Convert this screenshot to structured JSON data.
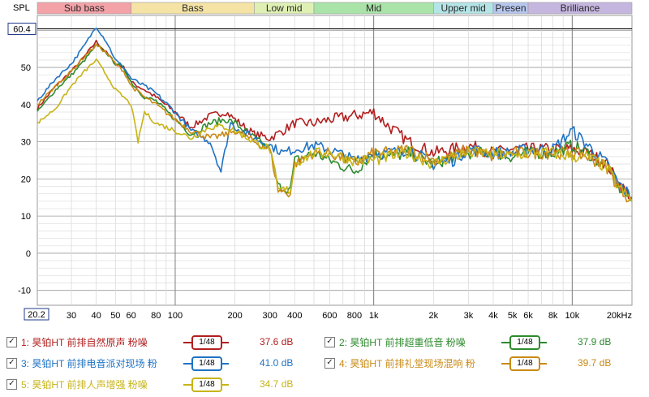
{
  "chart_data": {
    "type": "line",
    "title": "",
    "ylabel": "SPL",
    "xlabel": "",
    "x_scale": "log",
    "xlim": [
      20.2,
      20000
    ],
    "ylim": [
      -14,
      64
    ],
    "cursor_label": "60.4",
    "x_start_label": "20.2",
    "y_ticks": [
      "50",
      "40",
      "30",
      "20",
      "10",
      "0",
      "-10"
    ],
    "y_tick_values": [
      50,
      40,
      30,
      20,
      10,
      0,
      -10
    ],
    "x_ticks": [
      "30",
      "40",
      "50",
      "60",
      "80",
      "100",
      "200",
      "300",
      "400",
      "600",
      "800",
      "1k",
      "2k",
      "3k",
      "4k",
      "5k",
      "6k",
      "8k",
      "10k",
      "20kHz"
    ],
    "x_tick_values": [
      30,
      40,
      50,
      60,
      80,
      100,
      200,
      300,
      400,
      600,
      800,
      1000,
      2000,
      3000,
      4000,
      5000,
      6000,
      8000,
      10000,
      20000
    ],
    "bands": [
      {
        "label": "Sub bass",
        "from": 20.2,
        "to": 60,
        "color": "#f3a2a8"
      },
      {
        "label": "Bass",
        "from": 60,
        "to": 250,
        "color": "#f4e3a4"
      },
      {
        "label": "Low mid",
        "from": 250,
        "to": 500,
        "color": "#dff0b4"
      },
      {
        "label": "Mid",
        "from": 500,
        "to": 2000,
        "color": "#a9e3a8"
      },
      {
        "label": "Upper mid",
        "from": 2000,
        "to": 4000,
        "color": "#b4e4e6"
      },
      {
        "label": "Presen",
        "from": 4000,
        "to": 6000,
        "color": "#b6c7ee"
      },
      {
        "label": "Brilliance",
        "from": 6000,
        "to": 20000,
        "color": "#c5b6e0"
      }
    ],
    "series": [
      {
        "name": "1: 昊铂HT 前排自然原声 粉噪",
        "color": "#b21f1f",
        "smoothing": "1/48",
        "level": "37.6 dB",
        "points": [
          [
            20.2,
            39
          ],
          [
            25,
            45
          ],
          [
            30,
            49
          ],
          [
            35,
            53
          ],
          [
            40,
            57
          ],
          [
            45,
            54
          ],
          [
            50,
            51
          ],
          [
            55,
            50
          ],
          [
            60,
            46
          ],
          [
            70,
            44
          ],
          [
            80,
            42
          ],
          [
            100,
            38
          ],
          [
            120,
            34
          ],
          [
            150,
            37
          ],
          [
            180,
            38
          ],
          [
            200,
            36
          ],
          [
            250,
            32
          ],
          [
            300,
            31
          ],
          [
            350,
            33
          ],
          [
            400,
            35
          ],
          [
            500,
            35
          ],
          [
            600,
            36
          ],
          [
            800,
            37
          ],
          [
            1000,
            38
          ],
          [
            1200,
            34
          ],
          [
            1500,
            30
          ],
          [
            2000,
            27
          ],
          [
            2500,
            28
          ],
          [
            3000,
            29
          ],
          [
            4000,
            27
          ],
          [
            5000,
            28
          ],
          [
            6000,
            28
          ],
          [
            8000,
            28
          ],
          [
            10000,
            28
          ],
          [
            12000,
            27
          ],
          [
            15000,
            24
          ],
          [
            17000,
            19
          ],
          [
            20000,
            15
          ]
        ]
      },
      {
        "name": "2: 昊铂HT 前排超重低音 粉噪",
        "color": "#2e8b2e",
        "smoothing": "1/48",
        "level": "37.9 dB",
        "points": [
          [
            20.2,
            38
          ],
          [
            25,
            44
          ],
          [
            30,
            48
          ],
          [
            35,
            52
          ],
          [
            40,
            56
          ],
          [
            45,
            54
          ],
          [
            50,
            51
          ],
          [
            55,
            50
          ],
          [
            60,
            46
          ],
          [
            70,
            42
          ],
          [
            80,
            41
          ],
          [
            100,
            36
          ],
          [
            120,
            32
          ],
          [
            150,
            35
          ],
          [
            180,
            36
          ],
          [
            200,
            35
          ],
          [
            250,
            31
          ],
          [
            300,
            28
          ],
          [
            330,
            18
          ],
          [
            380,
            17
          ],
          [
            400,
            25
          ],
          [
            500,
            27
          ],
          [
            600,
            25
          ],
          [
            800,
            22
          ],
          [
            1000,
            27
          ],
          [
            1200,
            26
          ],
          [
            1500,
            27
          ],
          [
            2000,
            24
          ],
          [
            2500,
            26
          ],
          [
            3000,
            27
          ],
          [
            4000,
            27
          ],
          [
            5000,
            26
          ],
          [
            6000,
            27
          ],
          [
            8000,
            27
          ],
          [
            10000,
            29
          ],
          [
            12000,
            27
          ],
          [
            15000,
            23
          ],
          [
            17000,
            18
          ],
          [
            20000,
            14
          ]
        ]
      },
      {
        "name": "3: 昊铂HT 前排电音派对现场 粉",
        "color": "#1f73c4",
        "smoothing": "1/48",
        "level": "41.0 dB",
        "points": [
          [
            20.2,
            41
          ],
          [
            25,
            47
          ],
          [
            30,
            51
          ],
          [
            35,
            56
          ],
          [
            40,
            61
          ],
          [
            45,
            57
          ],
          [
            50,
            52
          ],
          [
            55,
            50
          ],
          [
            60,
            47
          ],
          [
            70,
            45
          ],
          [
            80,
            43
          ],
          [
            100,
            38
          ],
          [
            120,
            33
          ],
          [
            150,
            30
          ],
          [
            170,
            22
          ],
          [
            190,
            35
          ],
          [
            200,
            34
          ],
          [
            250,
            31
          ],
          [
            300,
            29
          ],
          [
            350,
            27
          ],
          [
            400,
            28
          ],
          [
            500,
            29
          ],
          [
            600,
            28
          ],
          [
            800,
            25
          ],
          [
            1000,
            27
          ],
          [
            1200,
            27
          ],
          [
            1500,
            28
          ],
          [
            2000,
            24
          ],
          [
            2500,
            25
          ],
          [
            3000,
            28
          ],
          [
            4000,
            27
          ],
          [
            5000,
            27
          ],
          [
            6000,
            28
          ],
          [
            8000,
            28
          ],
          [
            10000,
            33
          ],
          [
            12000,
            29
          ],
          [
            15000,
            24
          ],
          [
            17000,
            19
          ],
          [
            20000,
            15
          ]
        ]
      },
      {
        "name": "4: 昊铂HT 前排礼堂现场混响 粉",
        "color": "#c98a16",
        "smoothing": "1/48",
        "level": "39.7 dB",
        "points": [
          [
            20.2,
            40
          ],
          [
            25,
            45
          ],
          [
            30,
            49
          ],
          [
            35,
            53
          ],
          [
            40,
            56
          ],
          [
            45,
            54
          ],
          [
            50,
            51
          ],
          [
            55,
            49
          ],
          [
            60,
            45
          ],
          [
            70,
            42
          ],
          [
            80,
            40
          ],
          [
            100,
            36
          ],
          [
            120,
            33
          ],
          [
            150,
            31
          ],
          [
            180,
            32
          ],
          [
            200,
            33
          ],
          [
            250,
            30
          ],
          [
            300,
            28
          ],
          [
            330,
            17
          ],
          [
            380,
            16
          ],
          [
            400,
            24
          ],
          [
            500,
            27
          ],
          [
            600,
            27
          ],
          [
            800,
            24
          ],
          [
            1000,
            27
          ],
          [
            1200,
            27
          ],
          [
            1500,
            28
          ],
          [
            2000,
            25
          ],
          [
            2500,
            26
          ],
          [
            3000,
            28
          ],
          [
            4000,
            26
          ],
          [
            5000,
            27
          ],
          [
            6000,
            27
          ],
          [
            8000,
            27
          ],
          [
            10000,
            27
          ],
          [
            12000,
            26
          ],
          [
            15000,
            23
          ],
          [
            17000,
            18
          ],
          [
            20000,
            14
          ]
        ]
      },
      {
        "name": "5: 昊铂HT 前排人声增强 粉噪",
        "color": "#c7b417",
        "smoothing": "1/48",
        "level": "34.7 dB",
        "points": [
          [
            20.2,
            35
          ],
          [
            25,
            39
          ],
          [
            30,
            45
          ],
          [
            35,
            49
          ],
          [
            40,
            52
          ],
          [
            45,
            48
          ],
          [
            50,
            44
          ],
          [
            55,
            42
          ],
          [
            60,
            40
          ],
          [
            65,
            30
          ],
          [
            70,
            38
          ],
          [
            80,
            35
          ],
          [
            100,
            33
          ],
          [
            120,
            31
          ],
          [
            150,
            34
          ],
          [
            180,
            34
          ],
          [
            200,
            33
          ],
          [
            250,
            30
          ],
          [
            300,
            28
          ],
          [
            330,
            17
          ],
          [
            380,
            17
          ],
          [
            400,
            24
          ],
          [
            500,
            27
          ],
          [
            600,
            27
          ],
          [
            800,
            25
          ],
          [
            1000,
            25
          ],
          [
            1200,
            26
          ],
          [
            1500,
            27
          ],
          [
            2000,
            24
          ],
          [
            2500,
            26
          ],
          [
            3000,
            27
          ],
          [
            4000,
            27
          ],
          [
            5000,
            26
          ],
          [
            6000,
            27
          ],
          [
            8000,
            27
          ],
          [
            10000,
            26
          ],
          [
            12000,
            26
          ],
          [
            15000,
            23
          ],
          [
            17000,
            18
          ],
          [
            20000,
            14
          ]
        ]
      }
    ]
  }
}
